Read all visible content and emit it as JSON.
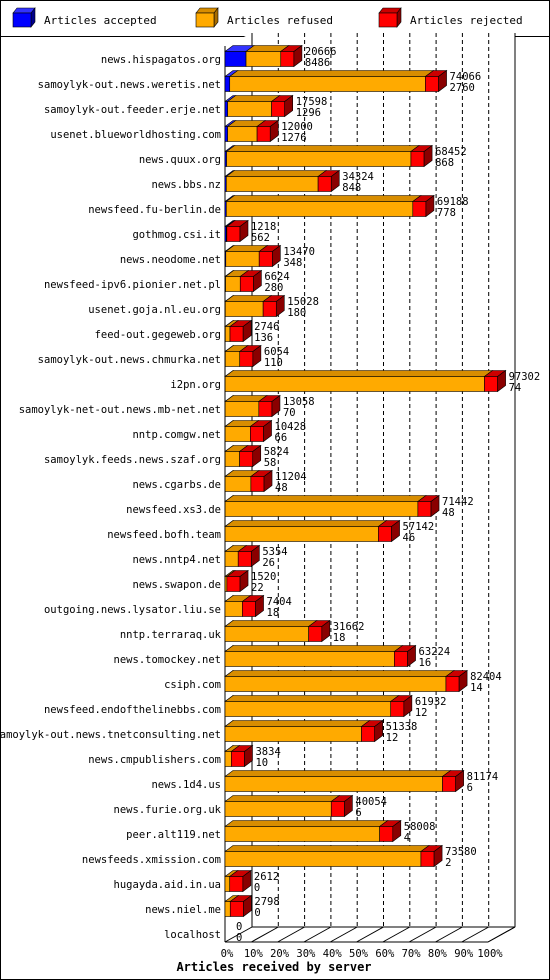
{
  "legend": [
    {
      "label": "Articles accepted",
      "color": "#0000ff",
      "top": "#3333ff",
      "side": "#00008a"
    },
    {
      "label": "Articles refused",
      "color": "#ffaa00",
      "top": "#d88d00",
      "side": "#a86c00"
    },
    {
      "label": "Articles rejected",
      "color": "#ff0000",
      "top": "#cc0000",
      "side": "#8a0000"
    }
  ],
  "chart_data": {
    "type": "bar",
    "orientation": "horizontal",
    "stacked": true,
    "x_tick_labels": [
      "0%",
      "10%",
      "20%",
      "30%",
      "40%",
      "50%",
      "60%",
      "70%",
      "80%",
      "90%",
      "100%"
    ],
    "xlabel": "Articles received by server",
    "xlim": [
      0,
      100
    ],
    "categories": [
      "news.hispagatos.org",
      "samoylyk-out.news.weretis.net",
      "samoylyk-out.feeder.erje.net",
      "usenet.blueworldhosting.com",
      "news.quux.org",
      "news.bbs.nz",
      "newsfeed.fu-berlin.de",
      "gothmog.csi.it",
      "news.neodome.net",
      "newsfeed-ipv6.pionier.net.pl",
      "usenet.goja.nl.eu.org",
      "feed-out.gegeweb.org",
      "samoylyk-out.news.chmurka.net",
      "i2pn.org",
      "samoylyk-net-out.news.mb-net.net",
      "nntp.comgw.net",
      "samoylyk.feeds.news.szaf.org",
      "news.cgarbs.de",
      "newsfeed.xs3.de",
      "newsfeed.bofh.team",
      "news.nntp4.net",
      "news.swapon.de",
      "outgoing.news.lysator.liu.se",
      "nntp.terraraq.uk",
      "news.tomockey.net",
      "csiph.com",
      "newsfeed.endofthelinebbs.com",
      "samoylyk-out.news.tnetconsulting.net",
      "news.cmpublishers.com",
      "news.1d4.us",
      "news.furie.org.uk",
      "peer.alt119.net",
      "newsfeeds.xmission.com",
      "hugayda.aid.in.ua",
      "news.niel.me",
      "localhost"
    ],
    "totals": [
      20666,
      74066,
      17598,
      12000,
      68452,
      34324,
      69188,
      1218,
      13470,
      6624,
      15028,
      2746,
      6054,
      97302,
      13058,
      10428,
      5824,
      11204,
      71442,
      57142,
      5354,
      1520,
      7404,
      31662,
      63224,
      82404,
      61932,
      51338,
      3834,
      81174,
      40054,
      58008,
      73580,
      2612,
      2798,
      0
    ],
    "accepted": [
      8486,
      2760,
      1296,
      1276,
      868,
      848,
      778,
      562,
      348,
      280,
      180,
      136,
      110,
      74,
      70,
      66,
      58,
      48,
      48,
      46,
      26,
      22,
      18,
      18,
      16,
      14,
      12,
      12,
      10,
      6,
      6,
      4,
      2,
      0,
      0,
      0
    ],
    "series": [
      {
        "name": "Articles accepted",
        "pct": [
          8.0,
          1.8,
          1.0,
          1.0,
          0.6,
          0.5,
          0.5,
          0.5,
          0.3,
          0.2,
          0.1,
          0.1,
          0.1,
          0.05,
          0.05,
          0.05,
          0.05,
          0.04,
          0.04,
          0.03,
          0.02,
          0.02,
          0.01,
          0.01,
          0.01,
          0.01,
          0.01,
          0.01,
          0.01,
          0.0,
          0.0,
          0.0,
          0.0,
          0,
          0,
          0
        ]
      },
      {
        "name": "Articles refused",
        "pct": [
          13.2,
          74.4,
          16.7,
          11.2,
          70.1,
          34.9,
          70.9,
          0.2,
          12.7,
          5.6,
          14.4,
          1.8,
          5.5,
          98.6,
          12.8,
          9.6,
          5.5,
          9.8,
          73.3,
          58.3,
          5.0,
          0.7,
          6.6,
          31.8,
          64.4,
          84.0,
          63.0,
          51.9,
          2.4,
          82.7,
          40.4,
          58.8,
          74.5,
          1.8,
          2.0,
          0
        ]
      },
      {
        "name": "Articles rejected",
        "pct": [
          5.0,
          5.0,
          5.0,
          5.0,
          5.0,
          5.0,
          5.0,
          5.0,
          5.0,
          5.0,
          5.0,
          5.0,
          5.0,
          5.0,
          5.0,
          5.0,
          5.0,
          5.0,
          5.0,
          5.0,
          5.0,
          5.0,
          5.0,
          5.0,
          5.0,
          5.0,
          5.0,
          5.0,
          5.0,
          5.0,
          5.0,
          5.0,
          5.0,
          5.0,
          5.0,
          0
        ]
      }
    ]
  }
}
